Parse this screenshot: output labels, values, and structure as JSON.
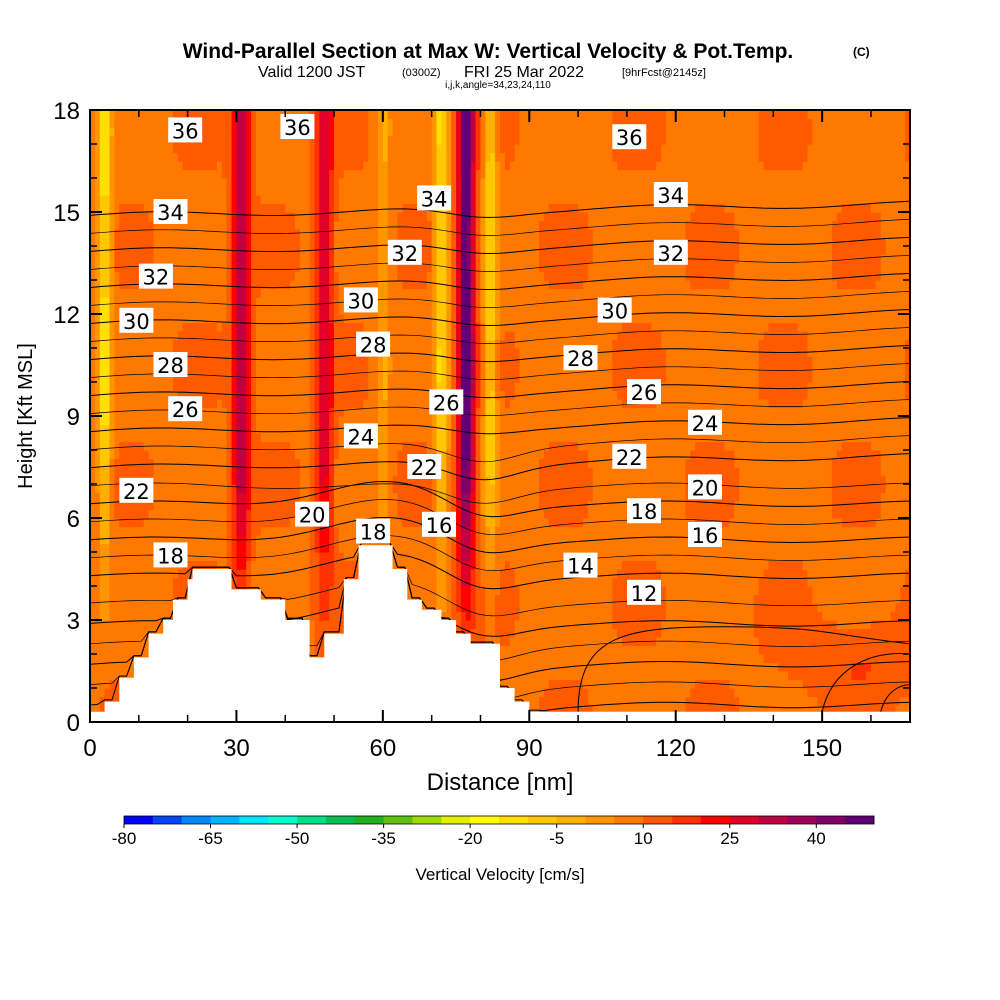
{
  "header": {
    "title": "Wind-Parallel Section at Max W: Vertical Velocity & Pot.Temp.",
    "copyright": "(C)",
    "valid_prefix": "Valid 1200 JST",
    "valid_utc": "(0300Z)",
    "valid_date": "FRI 25 Mar 2022",
    "forecast": "[9hrFcst@2145z]",
    "indices": "i,j,k,angle=34,23,24,110"
  },
  "chart_data": {
    "type": "heatmap",
    "xlabel": "Distance [nm]",
    "ylabel": "Height [Kft MSL]",
    "xlim": [
      0,
      168
    ],
    "ylim": [
      0,
      18
    ],
    "x_ticks": [
      0,
      30,
      60,
      90,
      120,
      150
    ],
    "y_ticks": [
      0,
      3,
      6,
      9,
      12,
      15,
      18
    ],
    "grid": false,
    "terrain": [
      [
        0,
        0.3
      ],
      [
        3,
        0.3
      ],
      [
        3,
        0.6
      ],
      [
        6,
        0.6
      ],
      [
        6,
        1.3
      ],
      [
        9,
        1.3
      ],
      [
        9,
        1.9
      ],
      [
        12,
        1.9
      ],
      [
        12,
        2.6
      ],
      [
        15,
        2.6
      ],
      [
        15,
        3.0
      ],
      [
        17,
        3.0
      ],
      [
        17,
        3.6
      ],
      [
        20,
        3.6
      ],
      [
        20,
        4.2
      ],
      [
        21,
        4.2
      ],
      [
        21,
        4.5
      ],
      [
        29,
        4.5
      ],
      [
        29,
        3.9
      ],
      [
        35,
        3.9
      ],
      [
        35,
        3.6
      ],
      [
        40,
        3.6
      ],
      [
        40,
        3.0
      ],
      [
        45,
        3.0
      ],
      [
        45,
        1.9
      ],
      [
        48,
        1.9
      ],
      [
        48,
        2.6
      ],
      [
        52,
        2.6
      ],
      [
        52,
        4.2
      ],
      [
        55,
        4.2
      ],
      [
        55,
        5.2
      ],
      [
        62,
        5.2
      ],
      [
        62,
        4.5
      ],
      [
        65,
        4.5
      ],
      [
        65,
        3.6
      ],
      [
        68,
        3.6
      ],
      [
        68,
        3.3
      ],
      [
        72,
        3.3
      ],
      [
        72,
        3.0
      ],
      [
        75,
        3.0
      ],
      [
        75,
        2.6
      ],
      [
        78,
        2.6
      ],
      [
        78,
        2.3
      ],
      [
        84,
        2.3
      ],
      [
        84,
        1.0
      ],
      [
        87,
        1.0
      ],
      [
        87,
        0.6
      ],
      [
        90,
        0.6
      ],
      [
        90,
        0.3
      ],
      [
        168,
        0.3
      ]
    ],
    "contours": {
      "variable": "Potential Temperature",
      "levels": [
        12,
        14,
        16,
        18,
        20,
        22,
        24,
        26,
        28,
        30,
        32,
        34,
        36
      ],
      "labels": [
        {
          "text": "36",
          "x": 19.5,
          "y": 17.4
        },
        {
          "text": "36",
          "x": 42.5,
          "y": 17.5
        },
        {
          "text": "36",
          "x": 110.5,
          "y": 17.2
        },
        {
          "text": "34",
          "x": 16.5,
          "y": 15.0
        },
        {
          "text": "34",
          "x": 70.5,
          "y": 15.4
        },
        {
          "text": "34",
          "x": 119.0,
          "y": 15.5
        },
        {
          "text": "32",
          "x": 13.5,
          "y": 13.1
        },
        {
          "text": "32",
          "x": 64.5,
          "y": 13.8
        },
        {
          "text": "32",
          "x": 119.0,
          "y": 13.8
        },
        {
          "text": "30",
          "x": 9.5,
          "y": 11.8
        },
        {
          "text": "30",
          "x": 55.5,
          "y": 12.4
        },
        {
          "text": "30",
          "x": 107.5,
          "y": 12.1
        },
        {
          "text": "28",
          "x": 16.5,
          "y": 10.5
        },
        {
          "text": "28",
          "x": 58.0,
          "y": 11.1
        },
        {
          "text": "28",
          "x": 100.5,
          "y": 10.7
        },
        {
          "text": "26",
          "x": 19.5,
          "y": 9.2
        },
        {
          "text": "26",
          "x": 73.0,
          "y": 9.4
        },
        {
          "text": "26",
          "x": 113.5,
          "y": 9.7
        },
        {
          "text": "24",
          "x": 55.5,
          "y": 8.4
        },
        {
          "text": "24",
          "x": 126.0,
          "y": 8.8
        },
        {
          "text": "22",
          "x": 9.5,
          "y": 6.8
        },
        {
          "text": "22",
          "x": 68.5,
          "y": 7.5
        },
        {
          "text": "22",
          "x": 110.5,
          "y": 7.8
        },
        {
          "text": "20",
          "x": 45.5,
          "y": 6.1
        },
        {
          "text": "20",
          "x": 126.0,
          "y": 6.9
        },
        {
          "text": "18",
          "x": 16.5,
          "y": 4.9
        },
        {
          "text": "18",
          "x": 58.0,
          "y": 5.6
        },
        {
          "text": "18",
          "x": 113.5,
          "y": 6.2
        },
        {
          "text": "16",
          "x": 71.5,
          "y": 5.8
        },
        {
          "text": "16",
          "x": 126.0,
          "y": 5.5
        },
        {
          "text": "14",
          "x": 100.5,
          "y": 4.6
        },
        {
          "text": "12",
          "x": 113.5,
          "y": 3.8
        }
      ]
    },
    "shading": {
      "variable": "Vertical Velocity",
      "units": "cm/s",
      "updraft_columns": [
        {
          "x": 31,
          "peak": 25
        },
        {
          "x": 48,
          "peak": 20
        },
        {
          "x": 77,
          "peak": 40
        }
      ],
      "downdraft_columns": [
        {
          "x": 3,
          "peak": -22
        },
        {
          "x": 60,
          "peak": -10
        },
        {
          "x": 72,
          "peak": -20
        },
        {
          "x": 82,
          "peak": -18
        }
      ]
    },
    "colorbar": {
      "label": "Vertical Velocity [cm/s]",
      "tick_labels": [
        "-80",
        "-65",
        "-50",
        "-35",
        "-20",
        "-5",
        "10",
        "25",
        "40"
      ],
      "colors": [
        "#0000ff",
        "#0044ff",
        "#0088ff",
        "#00b4ff",
        "#00e6ff",
        "#00ffcc",
        "#00e08a",
        "#00c050",
        "#20b020",
        "#60c010",
        "#a0d800",
        "#e0f000",
        "#ffff00",
        "#ffe000",
        "#ffc800",
        "#ffb000",
        "#ff9600",
        "#ff7800",
        "#ff5a00",
        "#ff3200",
        "#ff0000",
        "#e00028",
        "#c00040",
        "#a00058",
        "#800068",
        "#600078"
      ]
    }
  }
}
